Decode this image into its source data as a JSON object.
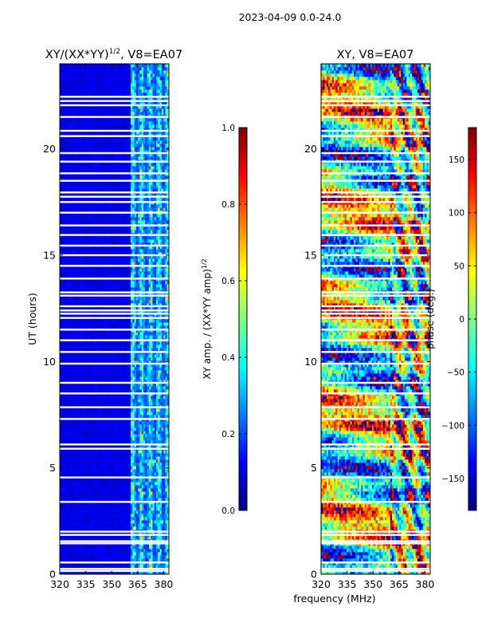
{
  "figure_title": "2023-04-09 0.0-24.0",
  "chart_data": [
    {
      "type": "heatmap",
      "title": "XY/(XX*YY)^1/2, V8=EA07",
      "title_main": "XY/(XX*YY)",
      "title_sup": "1/2",
      "title_tail": ", V8=EA07",
      "xlabel": "",
      "ylabel": "UT (hours)",
      "xlim": [
        320,
        383
      ],
      "ylim": [
        0,
        24
      ],
      "xticks": [
        320,
        335,
        350,
        365,
        380
      ],
      "yticks": [
        0,
        5,
        10,
        15,
        20
      ],
      "colorbar": {
        "label": "XY amp. / (XX*YY amp)^1/2",
        "label_main": "XY amp. / (XX*YY amp)",
        "label_sup": "1/2",
        "range": [
          0.0,
          1.0
        ],
        "ticks": [
          "0.0",
          "0.2",
          "0.4",
          "0.6",
          "0.8",
          "1.0"
        ],
        "tick_values": [
          0.0,
          0.2,
          0.4,
          0.6,
          0.8,
          1.0
        ],
        "colormap": "jet"
      }
    },
    {
      "type": "heatmap",
      "title": "XY, V8=EA07",
      "xlabel": "frequency (MHz)",
      "ylabel": "",
      "xlim": [
        320,
        383
      ],
      "ylim": [
        0,
        24
      ],
      "xticks": [
        320,
        335,
        350,
        365,
        380
      ],
      "yticks": [
        0,
        5,
        10,
        15,
        20
      ],
      "colorbar": {
        "label": "phase (deg.)",
        "range": [
          -180,
          180
        ],
        "ticks": [
          "−150",
          "−100",
          "−50",
          "0",
          "50",
          "100",
          "150"
        ],
        "tick_values": [
          -150,
          -100,
          -50,
          0,
          50,
          100,
          150
        ],
        "colormap": "jet"
      }
    }
  ],
  "flagged_time_gaps_hours": [
    0.15,
    0.25,
    0.55,
    1.45,
    1.55,
    1.85,
    2.0,
    3.4,
    4.55,
    5.9,
    6.1,
    7.3,
    7.85,
    8.5,
    9.0,
    9.9,
    10.45,
    11.0,
    11.5,
    12.05,
    12.25,
    12.4,
    12.6,
    13.1,
    13.25,
    13.9,
    14.5,
    15.0,
    15.45,
    15.95,
    16.4,
    17.0,
    17.5,
    17.75,
    17.95,
    18.5,
    18.85,
    19.4,
    19.8,
    20.6,
    20.85,
    21.5,
    22.05,
    22.25,
    22.45
  ]
}
